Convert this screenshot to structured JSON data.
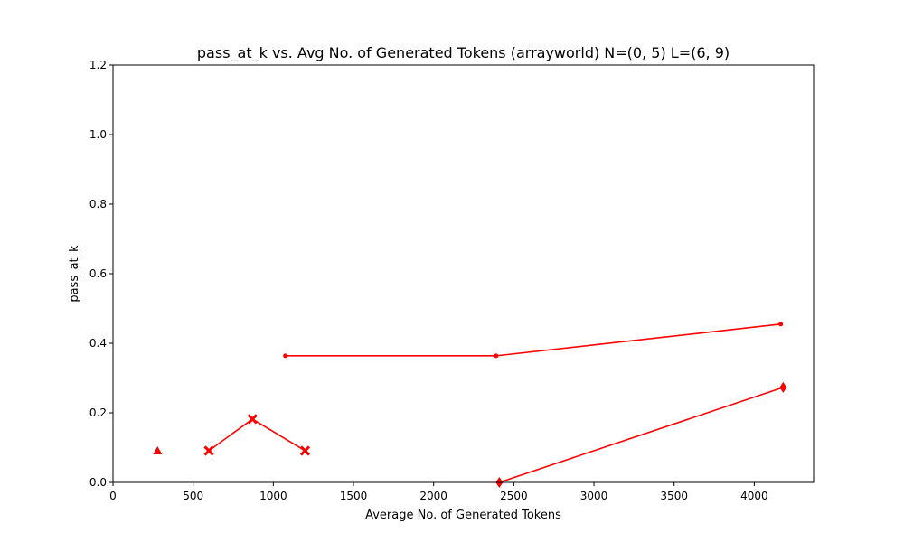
{
  "chart_data": {
    "type": "line",
    "title": "pass_at_k vs. Avg No. of Generated Tokens (arrayworld) N=(0, 5) L=(6, 9)",
    "xlabel": "Average No. of Generated Tokens",
    "ylabel": "pass_at_k",
    "xlim": [
      0,
      4370
    ],
    "ylim": [
      0,
      1.2
    ],
    "xticks": [
      0,
      500,
      1000,
      1500,
      2000,
      2500,
      3000,
      3500,
      4000
    ],
    "yticks": [
      0.0,
      0.2,
      0.4,
      0.6,
      0.8,
      1.0,
      1.2
    ],
    "ytick_labels": [
      "0.0",
      "0.2",
      "0.4",
      "0.6",
      "0.8",
      "1.0",
      "1.2"
    ],
    "grid": false,
    "legend": false,
    "color": "#ff0000",
    "series": [
      {
        "marker": "triangle",
        "points": [
          [
            278,
            0.091
          ]
        ]
      },
      {
        "marker": "x-filled",
        "points": [
          [
            598,
            0.091
          ],
          [
            870,
            0.182
          ],
          [
            1198,
            0.091
          ]
        ]
      },
      {
        "marker": "point",
        "points": [
          [
            1075,
            0.364
          ],
          [
            2390,
            0.364
          ],
          [
            4165,
            0.455
          ]
        ]
      },
      {
        "marker": "diamond",
        "points": [
          [
            2410,
            0.0
          ],
          [
            4180,
            0.273
          ]
        ]
      }
    ]
  }
}
